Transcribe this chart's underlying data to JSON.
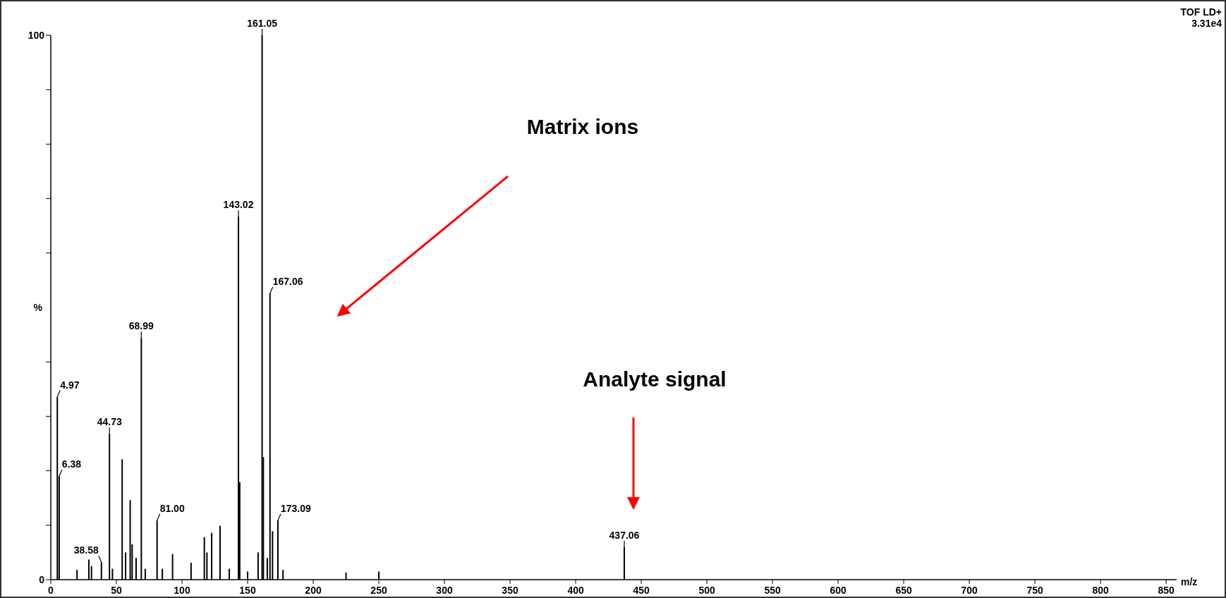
{
  "chart_data": {
    "type": "bar",
    "title": "TOF LD+",
    "subtitle": "3.31e4",
    "xlabel": "m/z",
    "ylabel": "%",
    "x": [
      4.97,
      6.38,
      20,
      29,
      31,
      38.58,
      44.73,
      47,
      54.4,
      57,
      60.5,
      62,
      65,
      68.99,
      72,
      81.0,
      85,
      92.8,
      106.9,
      117,
      119,
      122.6,
      129,
      136,
      143.02,
      144,
      150,
      158,
      161.05,
      162,
      165,
      167.06,
      169,
      173.09,
      177,
      225,
      250,
      437.06
    ],
    "values": [
      33.6,
      19,
      1.8,
      3.7,
      2.5,
      3.2,
      26.8,
      2,
      22.1,
      5,
      14.6,
      6.5,
      4,
      44.4,
      2,
      10.9,
      2,
      4.7,
      3.1,
      7.8,
      5,
      8.6,
      9.9,
      2,
      66.7,
      17.9,
      1.5,
      5,
      100,
      22.5,
      4,
      52.6,
      8.9,
      10.9,
      1.8,
      1.3,
      1.5,
      6
    ],
    "color": "#000000",
    "xlim": [
      0,
      858
    ],
    "ylim": [
      0,
      100
    ],
    "xticks": [
      0,
      50,
      100,
      150,
      200,
      250,
      300,
      350,
      400,
      450,
      500,
      550,
      600,
      650,
      700,
      750,
      800,
      850
    ],
    "yticks": [
      0,
      {
        "value": 10,
        "label": null
      },
      {
        "value": 20,
        "label": null
      },
      {
        "value": 30,
        "label": null
      },
      {
        "value": 40,
        "label": null
      },
      {
        "value": 60,
        "label": null
      },
      {
        "value": 70,
        "label": null
      },
      {
        "value": 80,
        "label": null
      },
      {
        "value": 90,
        "label": null
      },
      100
    ],
    "grid": false,
    "annotations": [
      {
        "text": "4.97",
        "x": 4.97,
        "y": 33.6
      },
      {
        "text": "6.38",
        "x": 6.38,
        "y": 19
      },
      {
        "text": "38.58",
        "x": 38.58,
        "y": 3.2
      },
      {
        "text": "44.73",
        "x": 44.73,
        "y": 26.8
      },
      {
        "text": "68.99",
        "x": 68.99,
        "y": 44.4
      },
      {
        "text": "81.00",
        "x": 81.0,
        "y": 10.9
      },
      {
        "text": "143.02",
        "x": 143.02,
        "y": 66.7
      },
      {
        "text": "161.05",
        "x": 161.05,
        "y": 100
      },
      {
        "text": "167.06",
        "x": 167.06,
        "y": 52.6
      },
      {
        "text": "173.09",
        "x": 173.09,
        "y": 10.9
      },
      {
        "text": "437.06",
        "x": 437.06,
        "y": 6
      },
      "Matrix ions",
      "Analyte signal"
    ]
  }
}
